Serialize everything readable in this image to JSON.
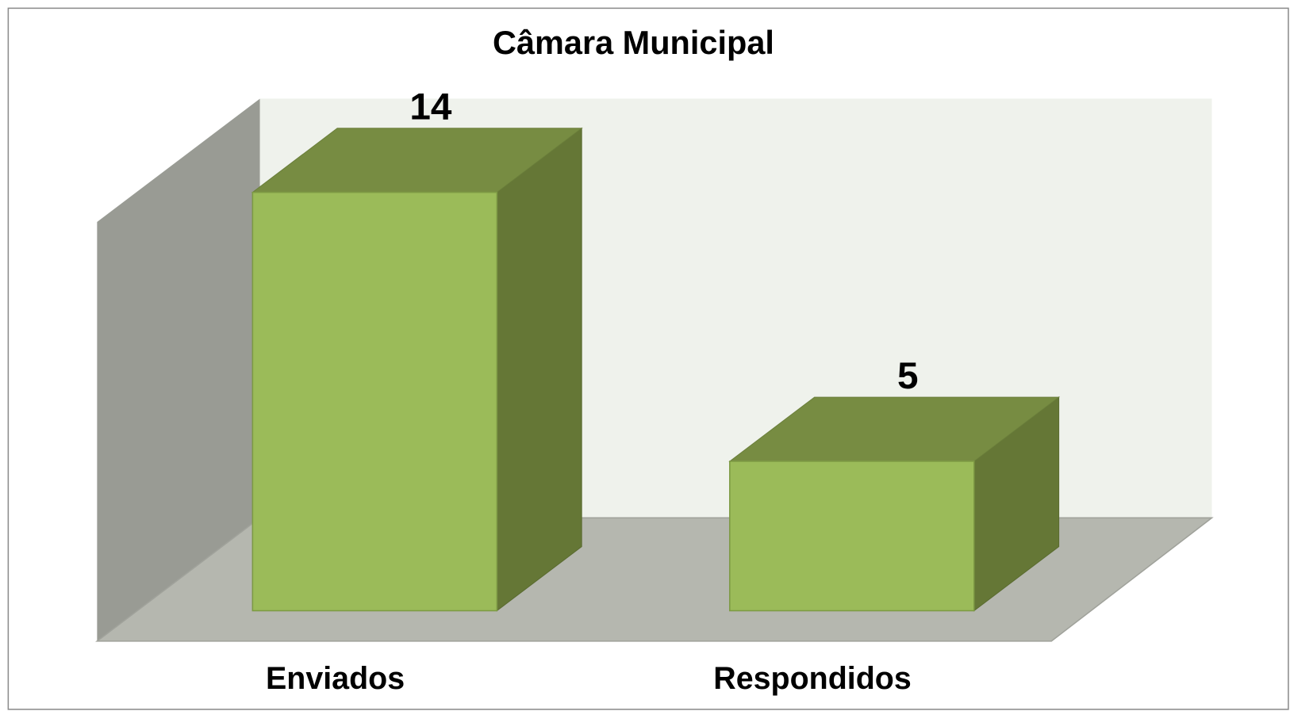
{
  "chart_data": {
    "type": "bar3d",
    "title": "Câmara Municipal",
    "categories": [
      "Enviados",
      "Respondidos"
    ],
    "values": [
      14,
      5
    ],
    "ylim": [
      0,
      14
    ],
    "colors": {
      "front": "#9bbb59",
      "top": "#778c42",
      "side": "#657736"
    }
  }
}
